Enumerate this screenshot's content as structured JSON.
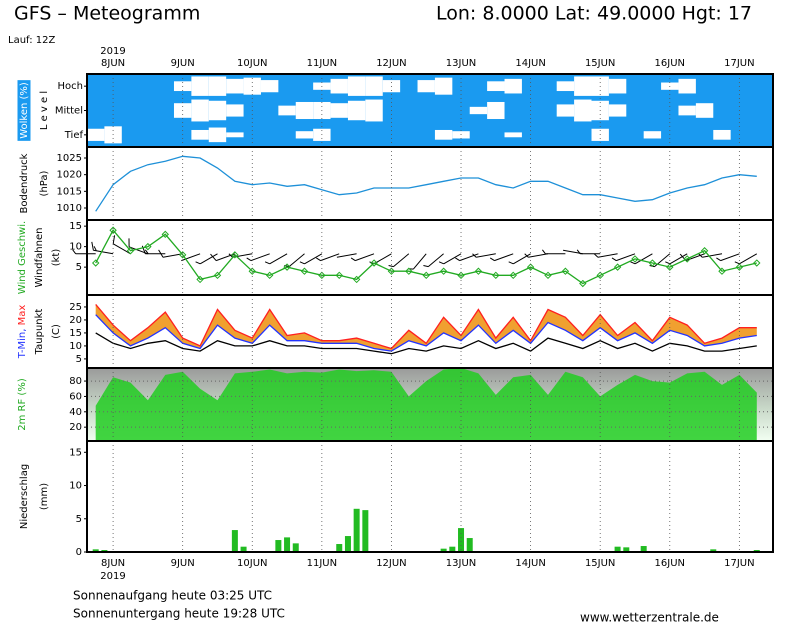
{
  "header": {
    "title": "GFS – Meteogramm",
    "location": "Lon: 8.0000 Lat: 49.0000 Hgt: 17",
    "run": "Lauf: 12Z"
  },
  "x_axis": {
    "xlim": [
      -9,
      227.6
    ],
    "year": "2019",
    "xticks": [
      {
        "value": 0,
        "label": "8JUN"
      },
      {
        "value": 24,
        "label": "9JUN"
      },
      {
        "value": 48,
        "label": "10JUN"
      },
      {
        "value": 72,
        "label": "11JUN"
      },
      {
        "value": 96,
        "label": "12JUN"
      },
      {
        "value": 120,
        "label": "13JUN"
      },
      {
        "value": 144,
        "label": "14JUN"
      },
      {
        "value": 168,
        "label": "15JUN"
      },
      {
        "value": 192,
        "label": "16JUN"
      },
      {
        "value": 216,
        "label": "17JUN"
      }
    ]
  },
  "chart_data": [
    {
      "type": "cloud",
      "ylabel": [
        [
          {
            "text": "Wolken (%)",
            "color": "#ffffff",
            "background": "#1a9af0"
          }
        ],
        [
          {
            "text": "L e v e l",
            "color": "#000000"
          }
        ]
      ],
      "background": "#1a9af0",
      "clim": [
        0,
        100
      ],
      "categories": [
        "Hoch",
        "Mittel",
        "Tief"
      ],
      "x": [
        -6,
        0,
        6,
        12,
        18,
        24,
        30,
        36,
        42,
        48,
        54,
        60,
        66,
        72,
        78,
        84,
        90,
        96,
        102,
        108,
        114,
        120,
        126,
        132,
        138,
        144,
        150,
        156,
        162,
        168,
        174,
        180,
        186,
        192,
        198,
        204,
        210,
        216,
        222
      ],
      "series": [
        {
          "color": "#ffffff",
          "values": [
            0,
            0,
            0,
            0,
            0,
            40,
            80,
            80,
            60,
            70,
            50,
            0,
            0,
            30,
            60,
            80,
            80,
            50,
            0,
            50,
            70,
            0,
            0,
            40,
            60,
            0,
            0,
            40,
            80,
            80,
            60,
            0,
            0,
            30,
            60,
            0,
            0,
            0,
            0
          ]
        },
        {
          "color": "#ffffff",
          "values": [
            0,
            0,
            0,
            0,
            0,
            60,
            90,
            80,
            50,
            0,
            0,
            40,
            70,
            70,
            60,
            80,
            90,
            0,
            0,
            0,
            0,
            0,
            30,
            70,
            0,
            0,
            0,
            50,
            90,
            80,
            50,
            0,
            0,
            0,
            40,
            60,
            0,
            0,
            0
          ]
        },
        {
          "color": "#ffffff",
          "values": [
            50,
            70,
            0,
            0,
            0,
            0,
            40,
            60,
            20,
            0,
            0,
            0,
            30,
            50,
            0,
            0,
            0,
            0,
            0,
            0,
            40,
            30,
            0,
            0,
            20,
            0,
            0,
            0,
            0,
            50,
            0,
            0,
            30,
            0,
            0,
            0,
            40,
            0,
            0
          ]
        }
      ]
    },
    {
      "type": "line",
      "ylabel": [
        [
          {
            "text": "Bodendruck",
            "color": "#000000"
          }
        ],
        [
          {
            "text": "(hPa)",
            "color": "#000000"
          }
        ]
      ],
      "ylim": [
        1006.4,
        1028.3
      ],
      "yticks": [
        1010,
        1015,
        1020,
        1025
      ],
      "grid": false,
      "x": [
        -6,
        0,
        6,
        12,
        18,
        24,
        30,
        36,
        42,
        48,
        54,
        60,
        66,
        72,
        78,
        84,
        90,
        96,
        102,
        108,
        114,
        120,
        126,
        132,
        138,
        144,
        150,
        156,
        162,
        168,
        174,
        180,
        186,
        192,
        198,
        204,
        210,
        216,
        222
      ],
      "series": [
        {
          "color": "#1e90d8",
          "values": [
            1009,
            1017,
            1021,
            1023,
            1024,
            1025.5,
            1025,
            1022,
            1018,
            1017,
            1017.5,
            1016.5,
            1017,
            1015.5,
            1014,
            1014.5,
            1016,
            1016,
            1016,
            1017,
            1018,
            1019,
            1019,
            1017,
            1016,
            1018,
            1018,
            1016,
            1014,
            1014,
            1013,
            1012,
            1012.5,
            1014.5,
            1016,
            1017,
            1019,
            1020,
            1019.5
          ]
        }
      ]
    },
    {
      "type": "line",
      "ylabel": [
        [
          {
            "text": "Wind Geschwi.",
            "color": "#22aa22"
          }
        ],
        [
          {
            "text": "Windfahnen",
            "color": "#000000"
          }
        ],
        [
          {
            "text": "(kt)",
            "color": "#000000"
          }
        ]
      ],
      "ylim": [
        -1.8,
        16.5
      ],
      "yticks": [
        5,
        10,
        15
      ],
      "grid": false,
      "markers": true,
      "x": [
        -6,
        0,
        6,
        12,
        18,
        24,
        30,
        36,
        42,
        48,
        54,
        60,
        66,
        72,
        78,
        84,
        90,
        96,
        102,
        108,
        114,
        120,
        126,
        132,
        138,
        144,
        150,
        156,
        162,
        168,
        174,
        180,
        186,
        192,
        198,
        204,
        210,
        216,
        222
      ],
      "series": [
        {
          "color": "#22aa22",
          "values": [
            6,
            14,
            9,
            10,
            13,
            8,
            2,
            3,
            8,
            4,
            3,
            5,
            4,
            3,
            3,
            2,
            6,
            4,
            4,
            3,
            4,
            3,
            4,
            3,
            3,
            5,
            3,
            4,
            1,
            3,
            5,
            7,
            6,
            5,
            7,
            9,
            4,
            5,
            6
          ]
        }
      ],
      "barbs": {
        "color": "#000000",
        "direction": [
          270,
          280,
          300,
          290,
          270,
          260,
          250,
          240,
          250,
          260,
          250,
          240,
          230,
          240,
          250,
          260,
          250,
          240,
          230,
          220,
          230,
          240,
          250,
          260,
          250,
          240,
          260,
          270,
          280,
          270,
          260,
          250,
          240,
          230,
          240,
          250,
          260,
          250,
          240
        ]
      }
    },
    {
      "type": "line",
      "ylabel": [
        [
          {
            "text": "T-Min,",
            "color": "#2233ff"
          },
          {
            "text": "Max",
            "color": "#ff2020"
          }
        ],
        [
          {
            "text": "Taupunkt",
            "color": "#000000"
          }
        ],
        [
          {
            "text": "(C)",
            "color": "#000000"
          }
        ]
      ],
      "ylim": [
        1.5,
        29.6
      ],
      "yticks": [
        5,
        10,
        15,
        20,
        25
      ],
      "grid": false,
      "fill_between": true,
      "fill": "#f0a030",
      "x": [
        -6,
        0,
        6,
        12,
        18,
        24,
        30,
        36,
        42,
        48,
        54,
        60,
        66,
        72,
        78,
        84,
        90,
        96,
        102,
        108,
        114,
        120,
        126,
        132,
        138,
        144,
        150,
        156,
        162,
        168,
        174,
        180,
        186,
        192,
        198,
        204,
        210,
        216,
        222
      ],
      "series": [
        {
          "color": "#2233ff",
          "values": [
            22,
            15,
            10,
            13,
            17,
            11,
            9,
            18,
            13,
            11,
            18,
            12,
            12,
            11,
            11,
            11,
            9,
            8,
            12,
            10,
            15,
            12,
            18,
            11,
            16,
            11,
            19,
            16,
            12,
            17,
            12,
            15,
            11,
            16,
            14,
            10,
            11,
            13,
            14
          ]
        },
        {
          "color": "#ff2020",
          "values": [
            26,
            18,
            12,
            17,
            23,
            13,
            10,
            24,
            16,
            13,
            24,
            14,
            15,
            12,
            12,
            13,
            11,
            9,
            16,
            11,
            21,
            14,
            24,
            13,
            21,
            12,
            24,
            21,
            14,
            22,
            14,
            19,
            12,
            21,
            18,
            11,
            13,
            17,
            17
          ]
        },
        {
          "color": "#000000",
          "values": [
            15,
            11,
            9,
            11,
            12,
            9,
            8,
            12,
            10,
            10,
            12,
            10,
            10,
            9,
            9,
            9,
            8,
            7,
            9,
            8,
            10,
            9,
            12,
            9,
            11,
            8,
            13,
            11,
            9,
            12,
            9,
            11,
            8,
            11,
            10,
            8,
            8,
            9,
            10
          ]
        }
      ]
    },
    {
      "type": "area",
      "ylabel": [
        [
          {
            "text": "2m RF (%)",
            "color": "#22aa22"
          }
        ]
      ],
      "ylim": [
        2,
        97
      ],
      "yticks": [
        20,
        40,
        60,
        80
      ],
      "grid": true,
      "x": [
        -6,
        0,
        6,
        12,
        18,
        24,
        30,
        36,
        42,
        48,
        54,
        60,
        66,
        72,
        78,
        84,
        90,
        96,
        102,
        108,
        114,
        120,
        126,
        132,
        138,
        144,
        150,
        156,
        162,
        168,
        174,
        180,
        186,
        192,
        198,
        204,
        210,
        216,
        222
      ],
      "series": [
        {
          "color": "#22cc22",
          "values": [
            48,
            85,
            78,
            55,
            88,
            92,
            70,
            55,
            90,
            92,
            95,
            90,
            92,
            91,
            95,
            93,
            94,
            92,
            60,
            80,
            95,
            97,
            90,
            62,
            85,
            88,
            62,
            92,
            85,
            60,
            75,
            88,
            80,
            78,
            90,
            92,
            75,
            88,
            65
          ]
        }
      ]
    },
    {
      "type": "bar",
      "ylabel": [
        [
          {
            "text": "Niederschlag",
            "color": "#000000"
          }
        ],
        [
          {
            "text": "(mm)",
            "color": "#000000"
          }
        ]
      ],
      "ylim": [
        0,
        16.7
      ],
      "yticks": [
        0,
        5,
        10,
        15
      ],
      "grid": false,
      "x": [
        -6,
        -3,
        42,
        45,
        57,
        60,
        63,
        78,
        81,
        84,
        87,
        114,
        117,
        120,
        123,
        174,
        177,
        183,
        207,
        222
      ],
      "series": [
        {
          "color": "#22bb22",
          "values": [
            0.4,
            0.3,
            3.3,
            0.8,
            1.8,
            2.2,
            1.3,
            1.2,
            2.4,
            6.5,
            6.3,
            0.5,
            0.8,
            3.6,
            2.1,
            0.8,
            0.7,
            0.9,
            0.4,
            0.3
          ]
        }
      ]
    }
  ],
  "footer": {
    "sunrise": "Sonnenaufgang heute 03:25 UTC",
    "sunset": "Sonnenuntergang heute 19:28 UTC",
    "url": "www.wetterzentrale.de"
  }
}
